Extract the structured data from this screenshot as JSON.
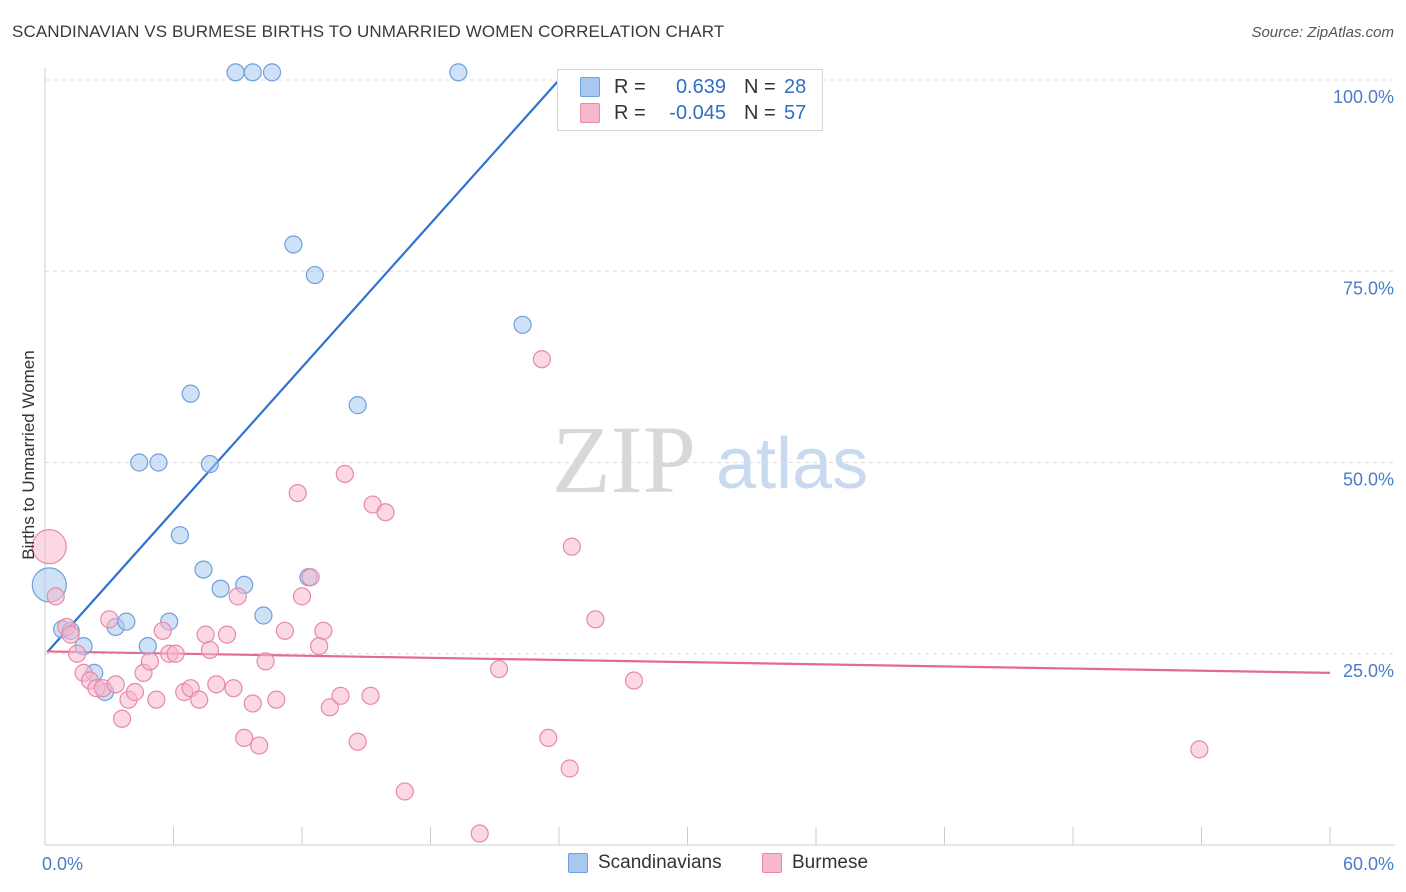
{
  "title": "SCANDINAVIAN VS BURMESE BIRTHS TO UNMARRIED WOMEN CORRELATION CHART",
  "source": "Source: ZipAtlas.com",
  "watermark": {
    "zip": "ZIP",
    "atlas": "atlas"
  },
  "legend": {
    "rows": [
      {
        "r_label": "R =",
        "r_value": "0.639",
        "n_label": "N =",
        "n_value": "28",
        "color": "#a8c8f0",
        "edge": "#6f9fdc"
      },
      {
        "r_label": "R =",
        "r_value": "-0.045",
        "n_label": "N =",
        "n_value": "57",
        "color": "#f7b8cc",
        "edge": "#e58aa8"
      }
    ]
  },
  "bottom_legend": [
    {
      "label": "Scandinavians",
      "color": "#a8c8f0",
      "edge": "#6f9fdc"
    },
    {
      "label": "Burmese",
      "color": "#f7b8cc",
      "edge": "#e58aa8"
    }
  ],
  "chart_data": {
    "type": "scatter",
    "title": "SCANDINAVIAN VS BURMESE BIRTHS TO UNMARRIED WOMEN CORRELATION CHART",
    "xlabel": "",
    "ylabel": "Births to Unmarried Women",
    "xlim": [
      0,
      60
    ],
    "ylim": [
      0,
      102
    ],
    "x_tick_labels": [
      "0.0%",
      "60.0%"
    ],
    "y_ticks": [
      25,
      50,
      75,
      100
    ],
    "y_tick_labels": [
      "25.0%",
      "50.0%",
      "75.0%",
      "100.0%"
    ],
    "grid": true,
    "series": [
      {
        "name": "Scandinavians",
        "color": "#6f9fdc",
        "fill": "#a8c8f0",
        "trend": {
          "x0": 0.1,
          "y0": 25.2,
          "x1": 24.0,
          "y1": 100.0,
          "color": "#2e72d2"
        },
        "points": [
          {
            "x": 0.2,
            "y": 34.0,
            "big": true
          },
          {
            "x": 0.8,
            "y": 28.2
          },
          {
            "x": 1.2,
            "y": 28.0
          },
          {
            "x": 1.8,
            "y": 26.0
          },
          {
            "x": 2.3,
            "y": 22.5
          },
          {
            "x": 2.8,
            "y": 20.0
          },
          {
            "x": 3.3,
            "y": 28.5
          },
          {
            "x": 3.8,
            "y": 29.2
          },
          {
            "x": 4.4,
            "y": 50.0
          },
          {
            "x": 4.8,
            "y": 26.0
          },
          {
            "x": 5.3,
            "y": 50.0
          },
          {
            "x": 5.8,
            "y": 29.2
          },
          {
            "x": 6.3,
            "y": 40.5
          },
          {
            "x": 6.8,
            "y": 59.0
          },
          {
            "x": 7.4,
            "y": 36.0
          },
          {
            "x": 7.7,
            "y": 49.8
          },
          {
            "x": 8.2,
            "y": 33.5
          },
          {
            "x": 8.9,
            "y": 101.0
          },
          {
            "x": 9.3,
            "y": 34.0
          },
          {
            "x": 9.7,
            "y": 101.0
          },
          {
            "x": 10.6,
            "y": 101.0
          },
          {
            "x": 10.2,
            "y": 30.0
          },
          {
            "x": 11.6,
            "y": 78.5
          },
          {
            "x": 12.3,
            "y": 35.0
          },
          {
            "x": 12.6,
            "y": 74.5
          },
          {
            "x": 14.6,
            "y": 57.5
          },
          {
            "x": 19.3,
            "y": 101.0
          },
          {
            "x": 22.3,
            "y": 68.0
          }
        ]
      },
      {
        "name": "Burmese",
        "color": "#e58aa8",
        "fill": "#f7b8cc",
        "trend": {
          "x0": 0.1,
          "y0": 25.3,
          "x1": 60.0,
          "y1": 22.5,
          "color": "#e26b96"
        },
        "points": [
          {
            "x": 0.2,
            "y": 39.0,
            "big": true
          },
          {
            "x": 0.5,
            "y": 32.5
          },
          {
            "x": 1.0,
            "y": 28.5
          },
          {
            "x": 1.2,
            "y": 27.5
          },
          {
            "x": 1.5,
            "y": 25.0
          },
          {
            "x": 1.8,
            "y": 22.5
          },
          {
            "x": 2.1,
            "y": 21.5
          },
          {
            "x": 2.4,
            "y": 20.5
          },
          {
            "x": 2.7,
            "y": 20.5
          },
          {
            "x": 3.0,
            "y": 29.5
          },
          {
            "x": 3.3,
            "y": 21.0
          },
          {
            "x": 3.6,
            "y": 16.5
          },
          {
            "x": 3.9,
            "y": 19.0
          },
          {
            "x": 4.2,
            "y": 20.0
          },
          {
            "x": 4.6,
            "y": 22.5
          },
          {
            "x": 4.9,
            "y": 24.0
          },
          {
            "x": 5.2,
            "y": 19.0
          },
          {
            "x": 5.5,
            "y": 28.0
          },
          {
            "x": 5.8,
            "y": 25.0
          },
          {
            "x": 6.1,
            "y": 25.0
          },
          {
            "x": 6.5,
            "y": 20.0
          },
          {
            "x": 6.8,
            "y": 20.5
          },
          {
            "x": 7.2,
            "y": 19.0
          },
          {
            "x": 7.5,
            "y": 27.5
          },
          {
            "x": 7.7,
            "y": 25.5
          },
          {
            "x": 8.0,
            "y": 21.0
          },
          {
            "x": 8.5,
            "y": 27.5
          },
          {
            "x": 8.8,
            "y": 20.5
          },
          {
            "x": 9.0,
            "y": 32.5
          },
          {
            "x": 9.3,
            "y": 14.0
          },
          {
            "x": 9.7,
            "y": 18.5
          },
          {
            "x": 10.0,
            "y": 13.0
          },
          {
            "x": 10.3,
            "y": 24.0
          },
          {
            "x": 10.8,
            "y": 19.0
          },
          {
            "x": 11.2,
            "y": 28.0
          },
          {
            "x": 11.8,
            "y": 46.0
          },
          {
            "x": 12.0,
            "y": 32.5
          },
          {
            "x": 12.4,
            "y": 35.0
          },
          {
            "x": 12.8,
            "y": 26.0
          },
          {
            "x": 13.0,
            "y": 28.0
          },
          {
            "x": 13.3,
            "y": 18.0
          },
          {
            "x": 13.8,
            "y": 19.5
          },
          {
            "x": 14.0,
            "y": 48.5
          },
          {
            "x": 14.6,
            "y": 13.5
          },
          {
            "x": 15.2,
            "y": 19.5
          },
          {
            "x": 15.3,
            "y": 44.5
          },
          {
            "x": 15.9,
            "y": 43.5
          },
          {
            "x": 16.8,
            "y": 7.0
          },
          {
            "x": 20.3,
            "y": 1.5
          },
          {
            "x": 21.2,
            "y": 23.0
          },
          {
            "x": 23.2,
            "y": 63.5
          },
          {
            "x": 23.5,
            "y": 14.0
          },
          {
            "x": 24.5,
            "y": 10.0
          },
          {
            "x": 24.6,
            "y": 39.0
          },
          {
            "x": 25.7,
            "y": 29.5
          },
          {
            "x": 27.5,
            "y": 21.5
          },
          {
            "x": 53.9,
            "y": 12.5
          }
        ]
      }
    ]
  }
}
